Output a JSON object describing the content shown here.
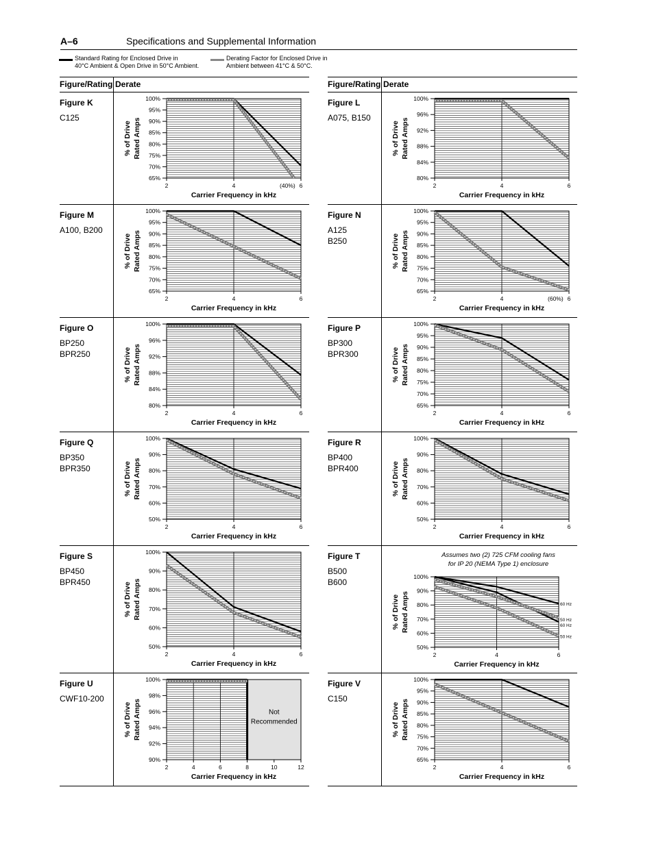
{
  "header": {
    "page_number": "A–6",
    "title": "Specifications and Supplemental Information"
  },
  "legend": {
    "standard": {
      "line1": "Standard Rating for Enclosed Drive in",
      "line2": "40°C Ambient & Open Drive in 50°C Ambient.",
      "color": "#000000"
    },
    "derating": {
      "line1": "Derating Factor for Enclosed Drive in",
      "line2": "Ambient between 41°C & 50°C.",
      "color": "#888888"
    }
  },
  "columns": {
    "left": {
      "header_figure": "Figure/Rating",
      "header_derate": "Derate"
    },
    "right": {
      "header_figure": "Figure/Rating",
      "header_derate": "Derate"
    }
  },
  "ylabel_line1": "% of Drive",
  "ylabel_line2": "Rated Amps",
  "chart_data": [
    {
      "id": "K",
      "figure": "Figure K",
      "ratings": [
        "C125"
      ],
      "type": "line",
      "xlabel": "Carrier Frequency in kHz",
      "xlim": [
        2,
        6
      ],
      "x_ticks": [
        "2",
        "4",
        "6"
      ],
      "ylim": [
        65,
        100
      ],
      "y_ticks": [
        "65%",
        "70%",
        "75%",
        "80%",
        "85%",
        "90%",
        "95%",
        "100%"
      ],
      "series": [
        {
          "kind": "standard",
          "x": [
            2,
            4,
            6
          ],
          "y": [
            100,
            100,
            70.5
          ]
        },
        {
          "kind": "derating",
          "x": [
            2,
            4,
            5.8
          ],
          "y": [
            99.5,
            99.5,
            65
          ]
        }
      ],
      "annotations": [
        {
          "text": "(40%)",
          "x": 5.6,
          "y": 65
        }
      ]
    },
    {
      "id": "L",
      "figure": "Figure L",
      "ratings": [
        "A075, B150"
      ],
      "type": "line",
      "xlabel": "Carrier Frequency in kHz",
      "xlim": [
        2,
        6
      ],
      "x_ticks": [
        "2",
        "4",
        "6"
      ],
      "ylim": [
        80,
        100
      ],
      "y_ticks": [
        "80%",
        "84%",
        "88%",
        "92%",
        "96%",
        "100%"
      ],
      "series": [
        {
          "kind": "standard",
          "x": [
            2,
            6
          ],
          "y": [
            100,
            100
          ]
        },
        {
          "kind": "derating",
          "x": [
            2,
            4,
            6
          ],
          "y": [
            99.5,
            99.5,
            85
          ]
        }
      ]
    },
    {
      "id": "M",
      "figure": "Figure M",
      "ratings": [
        "A100, B200"
      ],
      "type": "line",
      "xlabel": "Carrier Frequency in kHz",
      "xlim": [
        2,
        6
      ],
      "x_ticks": [
        "2",
        "4",
        "6"
      ],
      "ylim": [
        65,
        100
      ],
      "y_ticks": [
        "65%",
        "70%",
        "75%",
        "80%",
        "85%",
        "90%",
        "95%",
        "100%"
      ],
      "series": [
        {
          "kind": "standard",
          "x": [
            2,
            4,
            6
          ],
          "y": [
            100,
            100,
            85
          ]
        },
        {
          "kind": "derating",
          "x": [
            2,
            6
          ],
          "y": [
            98.5,
            70.5
          ]
        }
      ]
    },
    {
      "id": "N",
      "figure": "Figure N",
      "ratings": [
        "A125",
        "B250"
      ],
      "type": "line",
      "xlabel": "Carrier Frequency in kHz",
      "xlim": [
        2,
        6
      ],
      "x_ticks": [
        "2",
        "4",
        "6"
      ],
      "ylim": [
        65,
        100
      ],
      "y_ticks": [
        "65%",
        "70%",
        "75%",
        "80%",
        "85%",
        "90%",
        "95%",
        "100%"
      ],
      "series": [
        {
          "kind": "standard",
          "x": [
            2,
            4,
            6
          ],
          "y": [
            100,
            100,
            76
          ]
        },
        {
          "kind": "derating",
          "x": [
            2,
            4,
            6
          ],
          "y": [
            99.5,
            75.5,
            65.5
          ]
        }
      ],
      "annotations": [
        {
          "text": "(60%)",
          "x": 5.6,
          "y": 65
        }
      ]
    },
    {
      "id": "O",
      "figure": "Figure O",
      "ratings": [
        "BP250",
        "BPR250"
      ],
      "type": "line",
      "xlabel": "Carrier Frequency in kHz",
      "xlim": [
        2,
        6
      ],
      "x_ticks": [
        "2",
        "4",
        "6"
      ],
      "ylim": [
        80,
        100
      ],
      "y_ticks": [
        "80%",
        "84%",
        "88%",
        "92%",
        "96%",
        "100%"
      ],
      "series": [
        {
          "kind": "standard",
          "x": [
            2,
            4,
            6
          ],
          "y": [
            100,
            100,
            87.5
          ]
        },
        {
          "kind": "derating",
          "x": [
            2,
            4,
            6
          ],
          "y": [
            99.5,
            99.5,
            81.5
          ]
        }
      ]
    },
    {
      "id": "P",
      "figure": "Figure P",
      "ratings": [
        "BP300",
        "BPR300"
      ],
      "type": "line",
      "xlabel": "Carrier Frequency in kHz",
      "xlim": [
        2,
        6
      ],
      "x_ticks": [
        "2",
        "4",
        "6"
      ],
      "ylim": [
        65,
        100
      ],
      "y_ticks": [
        "65%",
        "70%",
        "75%",
        "80%",
        "85%",
        "90%",
        "95%",
        "100%"
      ],
      "series": [
        {
          "kind": "standard",
          "x": [
            2,
            4,
            6
          ],
          "y": [
            100,
            94,
            76
          ]
        },
        {
          "kind": "derating",
          "x": [
            2,
            4,
            6
          ],
          "y": [
            99.5,
            89,
            71
          ]
        }
      ]
    },
    {
      "id": "Q",
      "figure": "Figure Q",
      "ratings": [
        "BP350",
        "BPR350"
      ],
      "type": "line",
      "xlabel": "Carrier Frequency in kHz",
      "xlim": [
        2,
        6
      ],
      "x_ticks": [
        "2",
        "4",
        "6"
      ],
      "ylim": [
        50,
        100
      ],
      "y_ticks": [
        "50%",
        "60%",
        "70%",
        "80%",
        "90%",
        "100%"
      ],
      "series": [
        {
          "kind": "standard",
          "x": [
            2,
            4,
            6
          ],
          "y": [
            100,
            81,
            69
          ]
        },
        {
          "kind": "derating",
          "x": [
            2,
            4,
            6
          ],
          "y": [
            99,
            78,
            63
          ]
        }
      ]
    },
    {
      "id": "R",
      "figure": "Figure R",
      "ratings": [
        "BP400",
        "BPR400"
      ],
      "type": "line",
      "xlabel": "Carrier Frequency in kHz",
      "xlim": [
        2,
        6
      ],
      "x_ticks": [
        "2",
        "4",
        "6"
      ],
      "ylim": [
        50,
        100
      ],
      "y_ticks": [
        "50%",
        "60%",
        "70%",
        "80%",
        "90%",
        "100%"
      ],
      "series": [
        {
          "kind": "standard",
          "x": [
            2,
            4,
            6
          ],
          "y": [
            100,
            78,
            65.5
          ]
        },
        {
          "kind": "derating",
          "x": [
            2,
            4,
            6
          ],
          "y": [
            99,
            75,
            61.5
          ]
        }
      ]
    },
    {
      "id": "S",
      "figure": "Figure S",
      "ratings": [
        "BP450",
        "BPR450"
      ],
      "type": "line",
      "xlabel": "Carrier Frequency in kHz",
      "xlim": [
        2,
        6
      ],
      "x_ticks": [
        "2",
        "4",
        "6"
      ],
      "ylim": [
        50,
        100
      ],
      "y_ticks": [
        "50%",
        "60%",
        "70%",
        "80%",
        "90%",
        "100%"
      ],
      "series": [
        {
          "kind": "standard",
          "x": [
            2,
            4,
            6
          ],
          "y": [
            100,
            71,
            58
          ]
        },
        {
          "kind": "derating",
          "x": [
            2,
            4,
            6
          ],
          "y": [
            93,
            68,
            55
          ]
        }
      ]
    },
    {
      "id": "T",
      "figure": "Figure T",
      "ratings": [
        "B500",
        "B600"
      ],
      "type": "line",
      "xlabel": "Carrier Frequency in kHz",
      "xlim": [
        2,
        6
      ],
      "x_ticks": [
        "2",
        "4",
        "6"
      ],
      "ylim": [
        50,
        100
      ],
      "y_ticks": [
        "50%",
        "60%",
        "70%",
        "80%",
        "90%",
        "100%"
      ],
      "note": "Assumes two (2) 725 CFM cooling fans for IP 20 (NEMA Type 1) enclosure",
      "series": [
        {
          "kind": "standard",
          "name": "60 Hz",
          "x": [
            2,
            4,
            6
          ],
          "y": [
            100,
            93,
            81
          ]
        },
        {
          "kind": "standard",
          "name": "60 Hz",
          "x": [
            2,
            4,
            6
          ],
          "y": [
            100,
            89,
            68
          ]
        },
        {
          "kind": "derating",
          "name": "50 Hz",
          "x": [
            2,
            4,
            6
          ],
          "y": [
            98,
            86,
            71
          ]
        },
        {
          "kind": "derating",
          "name": "50 Hz",
          "x": [
            2,
            4,
            6
          ],
          "y": [
            93,
            78,
            58
          ]
        }
      ],
      "series_labels": [
        {
          "text": "60 Hz",
          "y": 81
        },
        {
          "text": "50 Hz",
          "y": 70
        },
        {
          "text": "60 Hz",
          "y": 66
        },
        {
          "text": "50 Hz",
          "y": 58
        }
      ]
    },
    {
      "id": "U",
      "figure": "Figure U",
      "ratings": [
        "CWF10-200"
      ],
      "type": "line",
      "xlabel": "Carrier Frequency in kHz",
      "xlim": [
        2,
        12
      ],
      "x_ticks": [
        "2",
        "4",
        "6",
        "8",
        "10",
        "12"
      ],
      "ylim": [
        90,
        100
      ],
      "y_ticks": [
        "90%",
        "92%",
        "94%",
        "96%",
        "98%",
        "100%"
      ],
      "series": [
        {
          "kind": "standard",
          "x": [
            2,
            8
          ],
          "y": [
            100,
            100
          ]
        },
        {
          "kind": "derating",
          "x": [
            2,
            8
          ],
          "y": [
            99.8,
            99.8
          ]
        }
      ],
      "region": {
        "x_from": 8,
        "x_to": 12,
        "label_line1": "Not",
        "label_line2": "Recommended"
      }
    },
    {
      "id": "V",
      "figure": "Figure V",
      "ratings": [
        "C150"
      ],
      "type": "line",
      "xlabel": "Carrier Frequency in kHz",
      "xlim": [
        2,
        6
      ],
      "x_ticks": [
        "2",
        "4",
        "6"
      ],
      "ylim": [
        65,
        100
      ],
      "y_ticks": [
        "65%",
        "70%",
        "75%",
        "80%",
        "85%",
        "90%",
        "95%",
        "100%"
      ],
      "series": [
        {
          "kind": "standard",
          "x": [
            2,
            4,
            6
          ],
          "y": [
            100,
            100,
            88
          ]
        },
        {
          "kind": "derating",
          "x": [
            2,
            6
          ],
          "y": [
            98,
            73
          ]
        }
      ]
    }
  ]
}
